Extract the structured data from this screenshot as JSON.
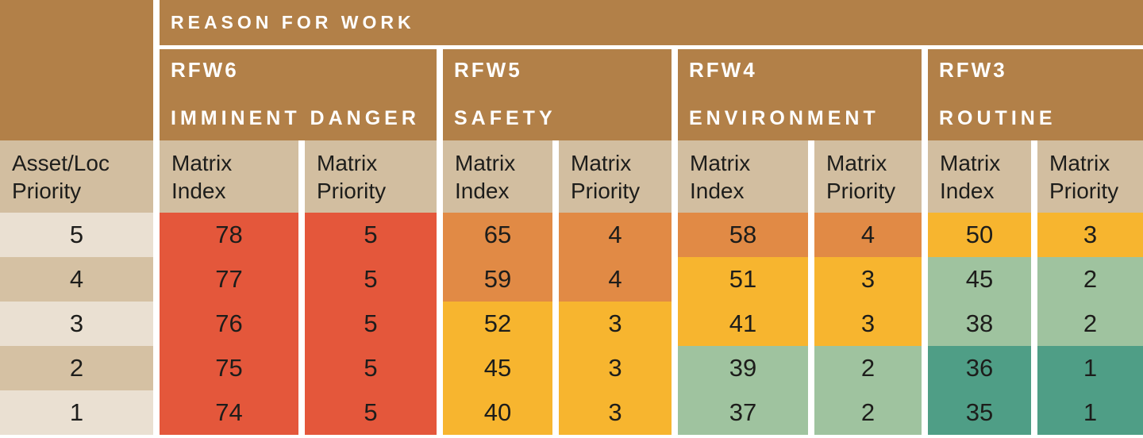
{
  "palette": {
    "brown": "#B28048",
    "tan": "#D2BEA0",
    "beige_light": "#EAE0D2",
    "beige_dark": "#D5C1A3",
    "red": "#E4573B",
    "orange": "#E18A45",
    "yellow": "#F7B52F",
    "green": "#9FC39F",
    "teal": "#4F9E86",
    "ink": "#1D1D1B",
    "header_text": "#FFFFFF",
    "gap": "#FFFFFF"
  },
  "chart_data": {
    "type": "table",
    "title": "REASON FOR WORK",
    "row_header_label": "Asset/Loc Priority",
    "legend_note": "cell colors encode priority level",
    "groups": [
      {
        "code": "RFW6",
        "label": "IMMINENT DANGER",
        "subcolumns": [
          "Matrix Index",
          "Matrix Priority"
        ]
      },
      {
        "code": "RFW5",
        "label": "SAFETY",
        "subcolumns": [
          "Matrix Index",
          "Matrix Priority"
        ]
      },
      {
        "code": "RFW4",
        "label": "ENVIRONMENT",
        "subcolumns": [
          "Matrix Index",
          "Matrix Priority"
        ]
      },
      {
        "code": "RFW3",
        "label": "ROUTINE",
        "subcolumns": [
          "Matrix Index",
          "Matrix Priority"
        ]
      }
    ],
    "rows": [
      {
        "label": "5",
        "label_bg": "beige_light",
        "cells": [
          {
            "v": "78",
            "bg": "red"
          },
          {
            "v": "5",
            "bg": "red"
          },
          {
            "v": "65",
            "bg": "orange"
          },
          {
            "v": "4",
            "bg": "orange"
          },
          {
            "v": "58",
            "bg": "orange"
          },
          {
            "v": "4",
            "bg": "orange"
          },
          {
            "v": "50",
            "bg": "yellow"
          },
          {
            "v": "3",
            "bg": "yellow"
          }
        ]
      },
      {
        "label": "4",
        "label_bg": "beige_dark",
        "cells": [
          {
            "v": "77",
            "bg": "red"
          },
          {
            "v": "5",
            "bg": "red"
          },
          {
            "v": "59",
            "bg": "orange"
          },
          {
            "v": "4",
            "bg": "orange"
          },
          {
            "v": "51",
            "bg": "yellow"
          },
          {
            "v": "3",
            "bg": "yellow"
          },
          {
            "v": "45",
            "bg": "green"
          },
          {
            "v": "2",
            "bg": "green"
          }
        ]
      },
      {
        "label": "3",
        "label_bg": "beige_light",
        "cells": [
          {
            "v": "76",
            "bg": "red"
          },
          {
            "v": "5",
            "bg": "red"
          },
          {
            "v": "52",
            "bg": "yellow"
          },
          {
            "v": "3",
            "bg": "yellow"
          },
          {
            "v": "41",
            "bg": "yellow"
          },
          {
            "v": "3",
            "bg": "yellow"
          },
          {
            "v": "38",
            "bg": "green"
          },
          {
            "v": "2",
            "bg": "green"
          }
        ]
      },
      {
        "label": "2",
        "label_bg": "beige_dark",
        "cells": [
          {
            "v": "75",
            "bg": "red"
          },
          {
            "v": "5",
            "bg": "red"
          },
          {
            "v": "45",
            "bg": "yellow"
          },
          {
            "v": "3",
            "bg": "yellow"
          },
          {
            "v": "39",
            "bg": "green"
          },
          {
            "v": "2",
            "bg": "green"
          },
          {
            "v": "36",
            "bg": "teal"
          },
          {
            "v": "1",
            "bg": "teal"
          }
        ]
      },
      {
        "label": "1",
        "label_bg": "beige_light",
        "cells": [
          {
            "v": "74",
            "bg": "red"
          },
          {
            "v": "5",
            "bg": "red"
          },
          {
            "v": "40",
            "bg": "yellow"
          },
          {
            "v": "3",
            "bg": "yellow"
          },
          {
            "v": "37",
            "bg": "green"
          },
          {
            "v": "2",
            "bg": "green"
          },
          {
            "v": "35",
            "bg": "teal"
          },
          {
            "v": "1",
            "bg": "teal"
          }
        ]
      }
    ]
  }
}
